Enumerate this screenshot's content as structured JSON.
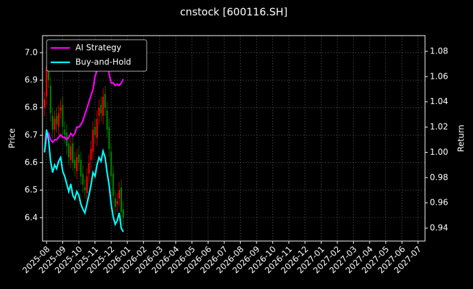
{
  "chart_data": {
    "type": "candlestick",
    "title": "cnstock [600116.SH]",
    "ylabel": "Price",
    "y2label": "Return",
    "x": [
      -0.125,
      0,
      0.125,
      0.25,
      0.375,
      0.5,
      0.625,
      0.75,
      0.875,
      1,
      1.125,
      1.25,
      1.375,
      1.5,
      1.625,
      1.75,
      1.875,
      2,
      2.125,
      2.25,
      2.375,
      2.5,
      2.625,
      2.75,
      2.875,
      3,
      3.125,
      3.25,
      3.375,
      3.5,
      3.625,
      3.75,
      3.875,
      4,
      4.125,
      4.25,
      4.375,
      4.5,
      4.625,
      4.75
    ],
    "open": [
      6.8,
      6.84,
      6.94,
      6.88,
      6.77,
      6.72,
      6.77,
      6.73,
      6.79,
      6.81,
      6.72,
      6.71,
      6.67,
      6.61,
      6.67,
      6.61,
      6.57,
      6.63,
      6.61,
      6.56,
      6.51,
      6.49,
      6.56,
      6.61,
      6.64,
      6.73,
      6.69,
      6.77,
      6.81,
      6.77,
      6.85,
      6.79,
      6.73,
      6.64,
      6.56,
      6.47,
      6.45,
      6.47,
      6.51,
      6.43
    ],
    "high": [
      6.86,
      6.98,
      6.97,
      6.91,
      6.8,
      6.79,
      6.8,
      6.81,
      6.83,
      6.84,
      6.75,
      6.74,
      6.7,
      6.69,
      6.7,
      6.64,
      6.65,
      6.66,
      6.64,
      6.59,
      6.54,
      6.58,
      6.63,
      6.68,
      6.75,
      6.76,
      6.79,
      6.83,
      6.84,
      6.87,
      6.88,
      6.82,
      6.76,
      6.67,
      6.59,
      6.5,
      6.49,
      6.53,
      6.54,
      6.46
    ],
    "low": [
      6.77,
      6.81,
      6.87,
      6.75,
      6.69,
      6.69,
      6.71,
      6.7,
      6.76,
      6.7,
      6.67,
      6.63,
      6.59,
      6.58,
      6.57,
      6.55,
      6.54,
      6.57,
      6.52,
      6.49,
      6.47,
      6.46,
      6.53,
      6.58,
      6.61,
      6.67,
      6.66,
      6.74,
      6.75,
      6.74,
      6.77,
      6.69,
      6.62,
      6.52,
      6.45,
      6.41,
      6.42,
      6.44,
      6.39,
      6.37
    ],
    "close": [
      6.83,
      6.95,
      6.9,
      6.78,
      6.72,
      6.76,
      6.74,
      6.78,
      6.8,
      6.73,
      6.7,
      6.66,
      6.62,
      6.66,
      6.6,
      6.58,
      6.62,
      6.6,
      6.55,
      6.52,
      6.5,
      6.55,
      6.6,
      6.65,
      6.72,
      6.7,
      6.76,
      6.8,
      6.78,
      6.84,
      6.8,
      6.72,
      6.65,
      6.55,
      6.48,
      6.44,
      6.46,
      6.5,
      6.42,
      6.4
    ],
    "up_color": "#ff0000",
    "down_color": "#008000",
    "series": [
      {
        "name": "AI Strategy",
        "color": "#ff00ff",
        "axis": "y2",
        "values": [
          1.0,
          1.012,
          1.015,
          1.01,
          1.008,
          1.01,
          1.01,
          1.012,
          1.014,
          1.012,
          1.012,
          1.01,
          1.012,
          1.015,
          1.013,
          1.015,
          1.02,
          1.02,
          1.022,
          1.025,
          1.03,
          1.035,
          1.04,
          1.045,
          1.05,
          1.06,
          1.065,
          1.07,
          1.08,
          1.085,
          1.083,
          1.075,
          1.062,
          1.055,
          1.055,
          1.053,
          1.054,
          1.053,
          1.055,
          1.058
        ]
      },
      {
        "name": "Buy-and-Hold",
        "color": "#00ffff",
        "axis": "y2",
        "values": [
          1.0,
          1.018,
          1.01,
          0.993,
          0.984,
          0.99,
          0.987,
          0.993,
          0.996,
          0.985,
          0.981,
          0.975,
          0.969,
          0.975,
          0.966,
          0.963,
          0.969,
          0.966,
          0.959,
          0.955,
          0.952,
          0.959,
          0.966,
          0.974,
          0.984,
          0.981,
          0.99,
          0.996,
          0.993,
          1.001,
          0.996,
          0.984,
          0.974,
          0.959,
          0.949,
          0.943,
          0.946,
          0.952,
          0.94,
          0.937
        ]
      }
    ],
    "xlim": [
      -0.25,
      23.43
    ],
    "ylim": [
      6.315,
      7.062
    ],
    "y2lim": [
      0.9297,
      1.0925
    ],
    "xticks": [
      {
        "value": 0,
        "label": "2025-08"
      },
      {
        "value": 1,
        "label": "2025-09"
      },
      {
        "value": 2,
        "label": "2025-10"
      },
      {
        "value": 3,
        "label": "2025-11"
      },
      {
        "value": 4,
        "label": "2025-12"
      },
      {
        "value": 5,
        "label": "2026-01"
      },
      {
        "value": 6,
        "label": "2026-02"
      },
      {
        "value": 7,
        "label": "2026-03"
      },
      {
        "value": 8,
        "label": "2026-04"
      },
      {
        "value": 9,
        "label": "2026-05"
      },
      {
        "value": 10,
        "label": "2026-06"
      },
      {
        "value": 11,
        "label": "2026-07"
      },
      {
        "value": 12,
        "label": "2026-08"
      },
      {
        "value": 13,
        "label": "2026-09"
      },
      {
        "value": 14,
        "label": "2026-10"
      },
      {
        "value": 15,
        "label": "2026-11"
      },
      {
        "value": 16,
        "label": "2026-12"
      },
      {
        "value": 17,
        "label": "2027-01"
      },
      {
        "value": 18,
        "label": "2027-02"
      },
      {
        "value": 19,
        "label": "2027-03"
      },
      {
        "value": 20,
        "label": "2027-04"
      },
      {
        "value": 21,
        "label": "2027-05"
      },
      {
        "value": 22,
        "label": "2027-06"
      },
      {
        "value": 23,
        "label": "2027-07"
      }
    ],
    "yticks": [
      6.4,
      6.5,
      6.6,
      6.7,
      6.8,
      6.9,
      {
        "value": 7,
        "label": "7.0"
      }
    ],
    "y2ticks": [
      0.94,
      0.96,
      0.98,
      {
        "value": 1,
        "label": "1.00"
      },
      1.02,
      1.04,
      1.06,
      1.08
    ],
    "grid": true,
    "legend": "upper left"
  }
}
